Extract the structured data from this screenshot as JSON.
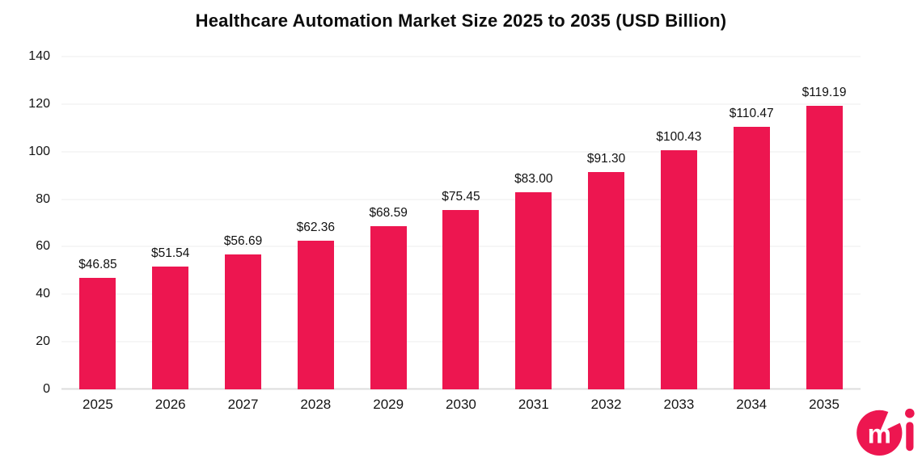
{
  "chart_data": {
    "type": "bar",
    "title": "Healthcare Automation Market Size 2025 to 2035 (USD Billion)",
    "categories": [
      "2025",
      "2026",
      "2027",
      "2028",
      "2029",
      "2030",
      "2031",
      "2032",
      "2033",
      "2034",
      "2035"
    ],
    "values": [
      46.85,
      51.54,
      56.69,
      62.36,
      68.59,
      75.45,
      83.0,
      91.3,
      100.43,
      110.47,
      119.19
    ],
    "value_labels": [
      "$46.85",
      "$51.54",
      "$56.69",
      "$62.36",
      "$68.59",
      "$75.45",
      "$83.00",
      "$91.30",
      "$100.43",
      "$110.47",
      "$119.19"
    ],
    "xlabel": "",
    "ylabel": "",
    "ylim": [
      0,
      140
    ],
    "yticks": [
      0,
      20,
      40,
      60,
      80,
      100,
      120,
      140
    ],
    "grid": true,
    "legend": false,
    "bar_color": "#ED1650"
  },
  "colors": {
    "accent": "#ED1650",
    "title_text": "#0d0d0d",
    "label_text": "#111111",
    "grid": "#ececec",
    "baseline": "#dcdcdc",
    "background": "#ffffff"
  },
  "logo": {
    "name": "cmi-logo",
    "letter_in_circle": "m",
    "letter_right": "i"
  }
}
